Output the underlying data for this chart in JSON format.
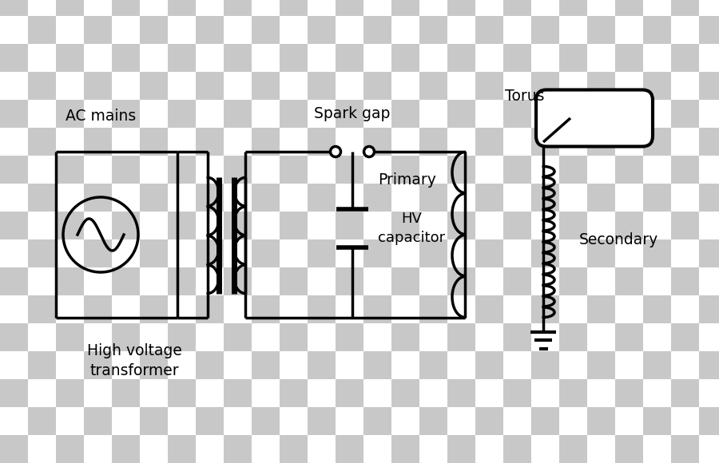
{
  "line_color": "#000000",
  "line_width": 2.5,
  "heavy_lw": 5.0,
  "labels": {
    "ac_mains": "AC mains",
    "hv_transformer": "High voltage\ntransformer",
    "spark_gap": "Spark gap",
    "hv_capacitor": "HV\ncapacitor",
    "primary": "Primary",
    "torus": "Torus",
    "secondary": "Secondary"
  },
  "font_size": 13.5,
  "checker_colors": [
    "#c8c8c8",
    "#ffffff"
  ],
  "checker_size": 0.35
}
